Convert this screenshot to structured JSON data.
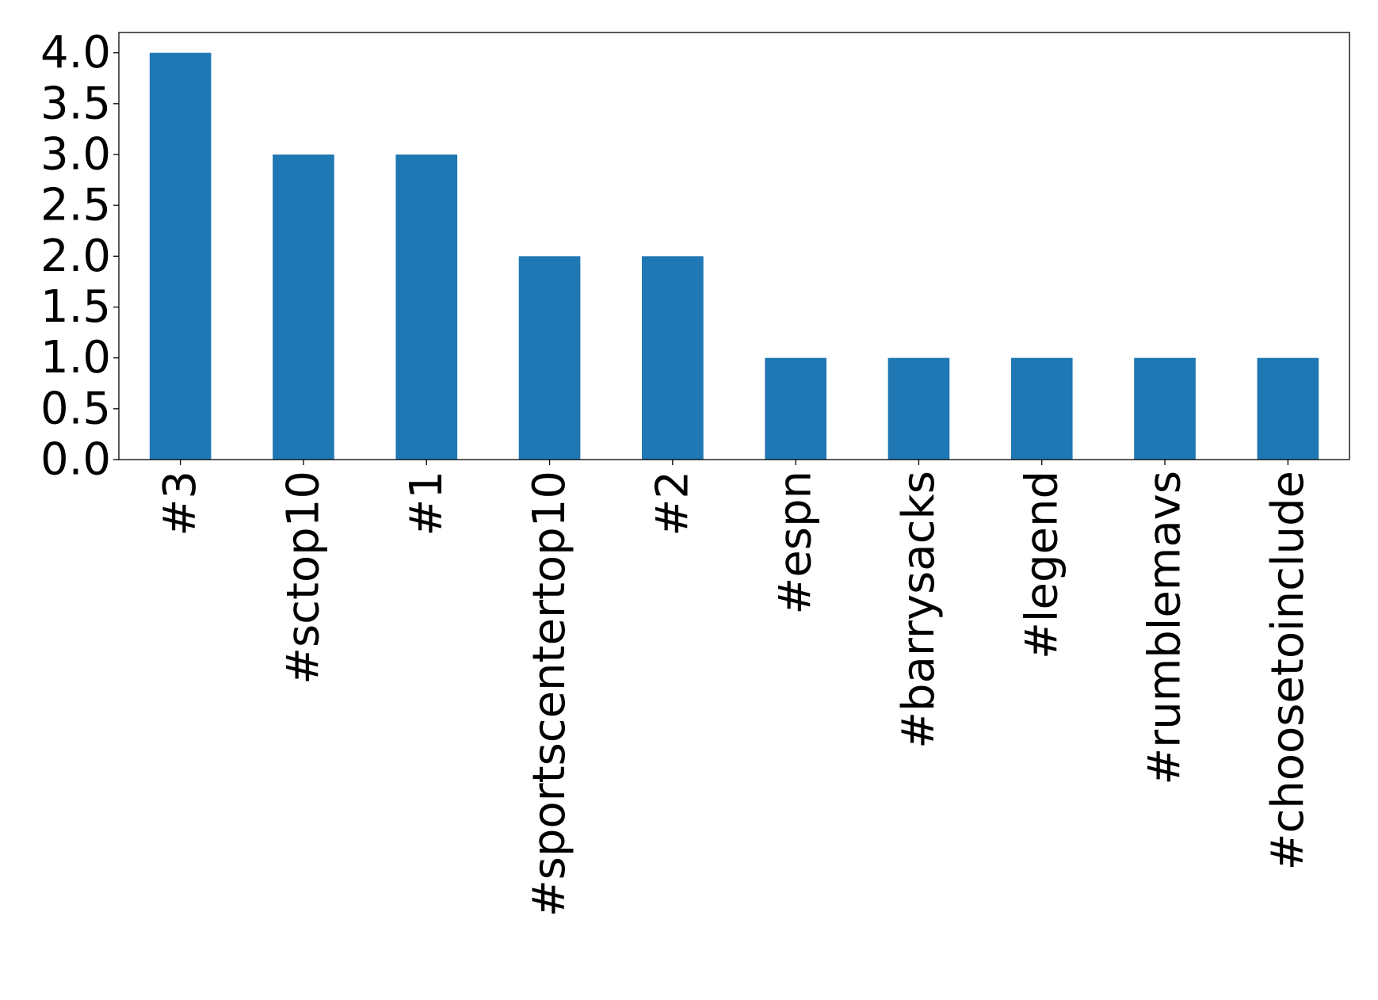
{
  "chart_data": {
    "type": "bar",
    "title": "",
    "xlabel": "",
    "ylabel": "",
    "categories": [
      "#3",
      "#sctop10",
      "#1",
      "#sportscentertop10",
      "#2",
      "#espn",
      "#barrysacks",
      "#legend",
      "#rumblemavs",
      "#choosetoinclude"
    ],
    "values": [
      4,
      3,
      3,
      2,
      2,
      1,
      1,
      1,
      1,
      1
    ],
    "ylim": [
      0,
      4.2
    ],
    "yticks": [
      "0.0",
      "0.5",
      "1.0",
      "1.5",
      "2.0",
      "2.5",
      "3.0",
      "3.5",
      "4.0"
    ],
    "grid": false,
    "legend": "none",
    "bar_color": "#1f77b4"
  }
}
